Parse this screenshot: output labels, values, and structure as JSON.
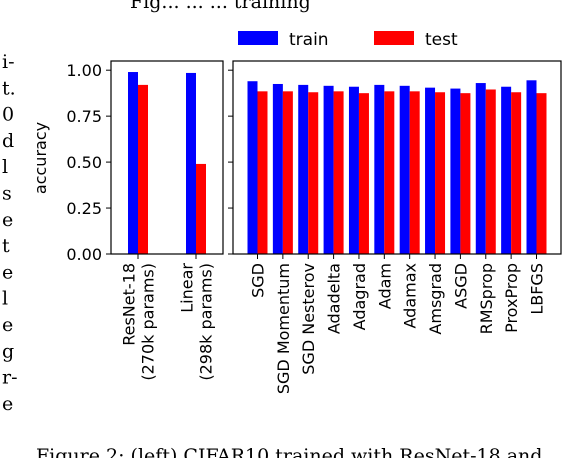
{
  "top_caption_fragment": "Fig... ... ... training",
  "side_text": [
    "i-",
    "t.",
    "0",
    "d",
    "l",
    "s",
    "e",
    "t",
    "e",
    "l",
    "e",
    "g",
    "r-",
    "e"
  ],
  "bottom_caption": "Figure 2: (left) CIFAR10 trained with ResNet-18 and",
  "colors": {
    "train": "#0000ff",
    "test": "#ff0000",
    "axis": "#000000"
  },
  "chart_data": [
    {
      "type": "bar",
      "ylabel": "accuracy",
      "ylim": [
        0,
        1.05
      ],
      "yticks": [
        0.0,
        0.25,
        0.5,
        0.75,
        1.0
      ],
      "ytick_labels": [
        "0.00",
        "0.25",
        "0.50",
        "0.75",
        "1.00"
      ],
      "categories": [
        "ResNet-18\n(270k params)",
        "Linear\n(298k params)"
      ],
      "series": [
        {
          "name": "train",
          "values": [
            0.99,
            0.985
          ]
        },
        {
          "name": "test",
          "values": [
            0.92,
            0.49
          ]
        }
      ],
      "grid": false
    },
    {
      "type": "bar",
      "ylim": [
        0,
        1.05
      ],
      "legend": "top",
      "categories": [
        "SGD",
        "SGD Momentum",
        "SGD Nesterov",
        "Adadelta",
        "Adagrad",
        "Adam",
        "Adamax",
        "Amsgrad",
        "ASGD",
        "RMSprop",
        "ProxProp",
        "LBFGS"
      ],
      "series": [
        {
          "name": "train",
          "values": [
            0.94,
            0.925,
            0.92,
            0.915,
            0.91,
            0.92,
            0.915,
            0.905,
            0.9,
            0.93,
            0.91,
            0.945
          ]
        },
        {
          "name": "test",
          "values": [
            0.885,
            0.885,
            0.88,
            0.885,
            0.875,
            0.885,
            0.885,
            0.88,
            0.875,
            0.895,
            0.88,
            0.875
          ]
        }
      ],
      "grid": false
    }
  ]
}
